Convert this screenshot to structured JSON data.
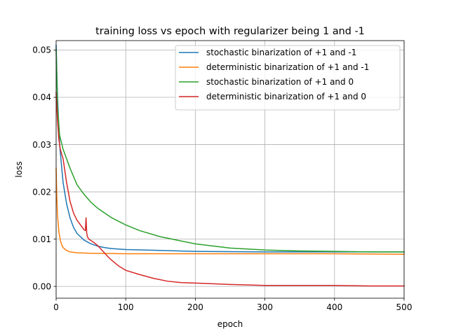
{
  "chart_data": {
    "type": "line",
    "title": "training loss vs epoch with regularizer being 1 and -1",
    "xlabel": "epoch",
    "ylabel": "loss",
    "xlim": [
      0,
      500
    ],
    "ylim": [
      -0.0025,
      0.052
    ],
    "xticks": [
      0,
      100,
      200,
      300,
      400,
      500
    ],
    "yticks": [
      0.0,
      0.01,
      0.02,
      0.03,
      0.04,
      0.05
    ],
    "xtick_labels": [
      "0",
      "100",
      "200",
      "300",
      "400",
      "500"
    ],
    "ytick_labels": [
      "0.00",
      "0.01",
      "0.02",
      "0.03",
      "0.04",
      "0.05"
    ],
    "grid": true,
    "legend_position": "top-right",
    "series": [
      {
        "name": "stochastic binarization of +1 and -1",
        "color": "#1f77b4",
        "x": [
          0,
          2,
          5,
          10,
          15,
          20,
          25,
          30,
          40,
          50,
          60,
          70,
          80,
          100,
          150,
          200,
          300,
          400,
          500
        ],
        "values": [
          0.051,
          0.04,
          0.03,
          0.022,
          0.0175,
          0.0145,
          0.0125,
          0.0112,
          0.0098,
          0.009,
          0.0085,
          0.0082,
          0.008,
          0.0078,
          0.0076,
          0.0074,
          0.0073,
          0.0073,
          0.0073
        ]
      },
      {
        "name": "deterministic binarization of +1 and -1",
        "color": "#ff7f0e",
        "x": [
          0,
          1,
          2,
          4,
          6,
          8,
          10,
          15,
          20,
          30,
          50,
          100,
          200,
          300,
          400,
          500
        ],
        "values": [
          0.025,
          0.019,
          0.015,
          0.0115,
          0.0098,
          0.0088,
          0.0082,
          0.0076,
          0.0073,
          0.0071,
          0.007,
          0.0069,
          0.0069,
          0.0069,
          0.0069,
          0.0068
        ]
      },
      {
        "name": "stochastic binarization of +1 and 0",
        "color": "#2ca02c",
        "x": [
          0,
          2,
          5,
          10,
          20,
          30,
          40,
          50,
          60,
          80,
          100,
          120,
          150,
          200,
          250,
          300,
          350,
          400,
          450,
          500
        ],
        "values": [
          0.05,
          0.038,
          0.032,
          0.029,
          0.025,
          0.0215,
          0.0195,
          0.0178,
          0.0165,
          0.0145,
          0.013,
          0.0118,
          0.0105,
          0.009,
          0.0081,
          0.0077,
          0.0075,
          0.0074,
          0.0073,
          0.0073
        ]
      },
      {
        "name": "deterministic binarization of +1 and 0",
        "color": "#d62728",
        "x": [
          0,
          2,
          4,
          6,
          8,
          10,
          15,
          20,
          25,
          30,
          35,
          40,
          42,
          43,
          44,
          45,
          47,
          50,
          55,
          60,
          65,
          70,
          75,
          80,
          90,
          100,
          120,
          140,
          160,
          180,
          200,
          250,
          300,
          350,
          400,
          450,
          500
        ],
        "values": [
          0.041,
          0.035,
          0.031,
          0.029,
          0.028,
          0.027,
          0.022,
          0.018,
          0.0155,
          0.014,
          0.013,
          0.012,
          0.0118,
          0.0145,
          0.0112,
          0.0105,
          0.01,
          0.0097,
          0.0092,
          0.0086,
          0.0078,
          0.007,
          0.0062,
          0.0055,
          0.0043,
          0.0034,
          0.0025,
          0.0017,
          0.0011,
          0.0008,
          0.0007,
          0.0004,
          0.0002,
          0.0002,
          0.0002,
          0.0001,
          0.0001
        ]
      }
    ]
  }
}
